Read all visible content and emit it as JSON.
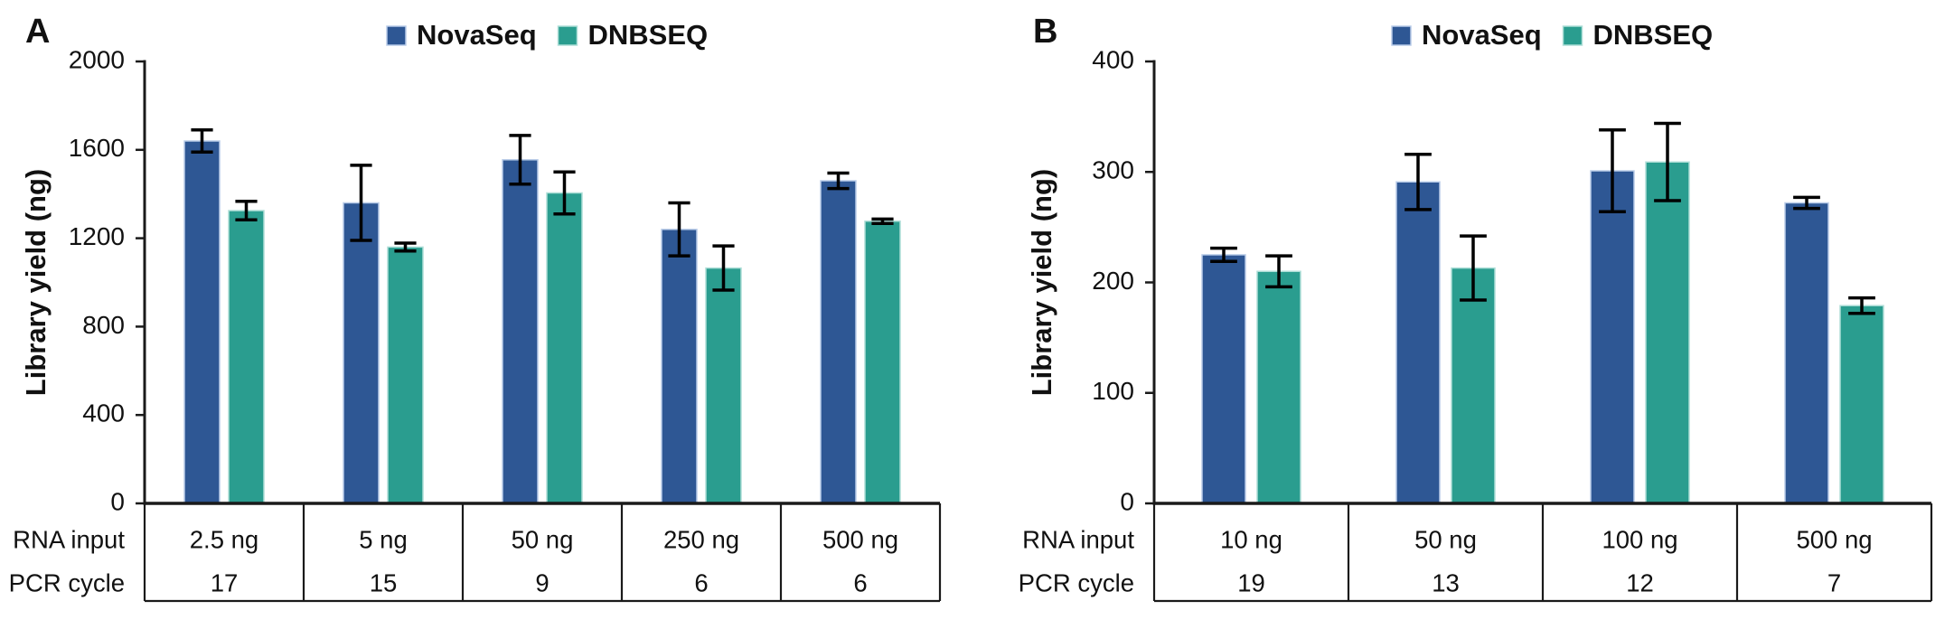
{
  "figure": {
    "ylabel": "Library yield (ng)",
    "row_labels": [
      "RNA input",
      "PCR cycle"
    ],
    "legend": {
      "position": "top-center",
      "items": [
        {
          "label": "NovaSeq",
          "color": "#2e5794",
          "edge_color": "#b9cce8"
        },
        {
          "label": "DNBSEQ",
          "color": "#2a9d8f",
          "edge_color": "#aeded7"
        }
      ]
    }
  },
  "chart_data": [
    {
      "type": "bar",
      "panel_label": "A",
      "title": "",
      "ylabel": "Library yield (ng)",
      "ylim": [
        0,
        2000
      ],
      "yticks": [
        0,
        400,
        800,
        1200,
        1600,
        2000
      ],
      "grid": false,
      "legend_position": "top-center",
      "legend_entries": [
        "NovaSeq",
        "DNBSEQ"
      ],
      "row_labels": [
        "RNA input",
        "PCR cycle"
      ],
      "categories": [
        "2.5 ng",
        "5 ng",
        "50 ng",
        "250 ng",
        "500 ng"
      ],
      "pcr_cycles": [
        "17",
        "15",
        "9",
        "6",
        "6"
      ],
      "series": [
        {
          "name": "NovaSeq",
          "color": "#2e5794",
          "edge_color": "#b9cce8",
          "values": [
            1640,
            1360,
            1555,
            1240,
            1460
          ],
          "errors": [
            50,
            170,
            110,
            120,
            35
          ]
        },
        {
          "name": "DNBSEQ",
          "color": "#2a9d8f",
          "edge_color": "#aeded7",
          "values": [
            1325,
            1160,
            1405,
            1065,
            1277
          ],
          "errors": [
            42,
            18,
            95,
            100,
            10
          ]
        }
      ]
    },
    {
      "type": "bar",
      "panel_label": "B",
      "title": "",
      "ylabel": "Library yield (ng)",
      "ylim": [
        0,
        400
      ],
      "yticks": [
        0,
        100,
        200,
        300,
        400
      ],
      "grid": false,
      "legend_position": "top-center",
      "legend_entries": [
        "NovaSeq",
        "DNBSEQ"
      ],
      "row_labels": [
        "RNA input",
        "PCR cycle"
      ],
      "categories": [
        "10 ng",
        "50 ng",
        "100 ng",
        "500 ng"
      ],
      "pcr_cycles": [
        "19",
        "13",
        "12",
        "7"
      ],
      "series": [
        {
          "name": "NovaSeq",
          "color": "#2e5794",
          "edge_color": "#b9cce8",
          "values": [
            225,
            291,
            301,
            272
          ],
          "errors": [
            6,
            25,
            37,
            5
          ]
        },
        {
          "name": "DNBSEQ",
          "color": "#2a9d8f",
          "edge_color": "#aeded7",
          "values": [
            210,
            213,
            309,
            179
          ],
          "errors": [
            14,
            29,
            35,
            7
          ]
        }
      ]
    }
  ]
}
